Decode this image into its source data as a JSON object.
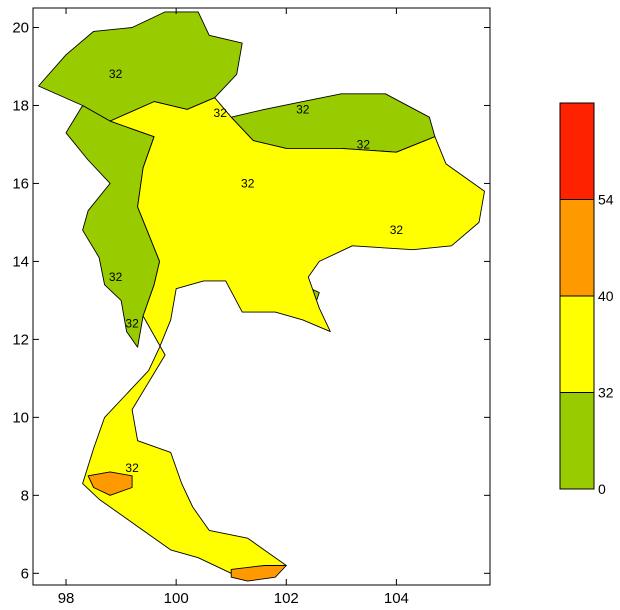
{
  "chart_data": {
    "type": "heatmap",
    "title": "",
    "xlabel": "",
    "ylabel": "",
    "xlim": [
      97.4,
      105.7
    ],
    "ylim": [
      5.7,
      20.5
    ],
    "x_ticks": [
      {
        "value": 98,
        "label": "98"
      },
      {
        "value": 100,
        "label": "100"
      },
      {
        "value": 102,
        "label": "102"
      },
      {
        "value": 104,
        "label": "104"
      }
    ],
    "y_ticks": [
      {
        "value": 6,
        "label": "6"
      },
      {
        "value": 8,
        "label": "8"
      },
      {
        "value": 10,
        "label": "10"
      },
      {
        "value": 12,
        "label": "12"
      },
      {
        "value": 14,
        "label": "14"
      },
      {
        "value": 16,
        "label": "16"
      },
      {
        "value": 18,
        "label": "18"
      },
      {
        "value": 20,
        "label": "20"
      }
    ],
    "color_classes": [
      {
        "from": 0,
        "to": 32,
        "color": "#99cc00"
      },
      {
        "from": 32,
        "to": 40,
        "color": "#ffff00"
      },
      {
        "from": 40,
        "to": 54,
        "color": "#ff9900"
      },
      {
        "from": 54,
        "to": 999,
        "color": "#ff2200"
      }
    ],
    "colorbar_labels": [
      "0",
      "32",
      "40",
      "54"
    ],
    "contour_labels": [
      {
        "text": "32",
        "lon": 98.9,
        "lat": 18.7
      },
      {
        "text": "32",
        "lon": 100.8,
        "lat": 17.7
      },
      {
        "text": "32",
        "lon": 102.3,
        "lat": 17.8
      },
      {
        "text": "32",
        "lon": 103.4,
        "lat": 16.9
      },
      {
        "text": "32",
        "lon": 101.3,
        "lat": 15.9
      },
      {
        "text": "32",
        "lon": 104.0,
        "lat": 14.7
      },
      {
        "text": "32",
        "lon": 98.9,
        "lat": 13.5
      },
      {
        "text": "32",
        "lon": 99.2,
        "lat": 12.3
      },
      {
        "text": "32",
        "lon": 99.2,
        "lat": 8.6
      }
    ],
    "regions": [
      {
        "name": "far-north",
        "class": 0,
        "points": [
          [
            97.5,
            18.5
          ],
          [
            98.0,
            19.3
          ],
          [
            98.5,
            19.9
          ],
          [
            99.2,
            20.0
          ],
          [
            99.8,
            20.4
          ],
          [
            100.4,
            20.4
          ],
          [
            100.6,
            19.8
          ],
          [
            101.2,
            19.6
          ],
          [
            101.1,
            18.8
          ],
          [
            100.7,
            18.2
          ],
          [
            100.2,
            17.9
          ],
          [
            99.6,
            18.1
          ],
          [
            98.8,
            17.6
          ],
          [
            98.3,
            18.0
          ]
        ]
      },
      {
        "name": "west-border",
        "class": 0,
        "points": [
          [
            98.3,
            18.0
          ],
          [
            98.8,
            17.6
          ],
          [
            99.6,
            17.2
          ],
          [
            99.4,
            16.4
          ],
          [
            99.3,
            15.4
          ],
          [
            99.5,
            14.7
          ],
          [
            99.7,
            14.0
          ],
          [
            99.6,
            13.4
          ],
          [
            99.4,
            12.6
          ],
          [
            99.3,
            11.8
          ],
          [
            99.1,
            12.2
          ],
          [
            99.0,
            13.0
          ],
          [
            98.7,
            13.4
          ],
          [
            98.6,
            14.1
          ],
          [
            98.3,
            14.8
          ],
          [
            98.4,
            15.3
          ],
          [
            98.8,
            16.0
          ],
          [
            98.4,
            16.6
          ],
          [
            98.0,
            17.3
          ]
        ]
      },
      {
        "name": "northeast-upper",
        "class": 0,
        "points": [
          [
            101.0,
            17.7
          ],
          [
            101.6,
            17.9
          ],
          [
            102.3,
            18.1
          ],
          [
            103.0,
            18.3
          ],
          [
            103.8,
            18.3
          ],
          [
            104.6,
            17.7
          ],
          [
            104.7,
            17.2
          ],
          [
            104.0,
            16.8
          ],
          [
            103.0,
            16.9
          ],
          [
            102.0,
            16.9
          ],
          [
            101.4,
            17.1
          ]
        ]
      },
      {
        "name": "central-west",
        "class": 0,
        "points": [
          [
            101.2,
            16.3
          ],
          [
            102.0,
            16.4
          ],
          [
            102.6,
            16.1
          ],
          [
            102.9,
            15.5
          ],
          [
            102.8,
            14.8
          ],
          [
            102.2,
            14.4
          ],
          [
            101.4,
            14.6
          ],
          [
            101.0,
            15.2
          ],
          [
            100.9,
            15.8
          ]
        ]
      },
      {
        "name": "korat-strip",
        "class": 0,
        "points": [
          [
            103.3,
            14.6
          ],
          [
            104.1,
            14.7
          ],
          [
            104.9,
            14.8
          ],
          [
            104.9,
            14.6
          ],
          [
            104.0,
            14.4
          ],
          [
            103.3,
            14.5
          ]
        ]
      },
      {
        "name": "chanthaburi",
        "class": 0,
        "points": [
          [
            102.3,
            13.4
          ],
          [
            102.6,
            13.2
          ],
          [
            102.5,
            12.8
          ],
          [
            102.3,
            12.9
          ],
          [
            102.1,
            13.1
          ]
        ]
      },
      {
        "name": "central-plain",
        "class": 1,
        "points": [
          [
            99.6,
            18.1
          ],
          [
            100.2,
            17.9
          ],
          [
            100.7,
            18.2
          ],
          [
            101.0,
            17.7
          ],
          [
            101.4,
            17.1
          ],
          [
            102.0,
            16.9
          ],
          [
            103.0,
            16.9
          ],
          [
            104.0,
            16.8
          ],
          [
            104.7,
            17.2
          ],
          [
            104.9,
            16.5
          ],
          [
            105.6,
            15.8
          ],
          [
            105.5,
            15.0
          ],
          [
            105.0,
            14.4
          ],
          [
            104.3,
            14.3
          ],
          [
            103.2,
            14.4
          ],
          [
            102.6,
            14.0
          ],
          [
            102.4,
            13.6
          ],
          [
            102.6,
            12.8
          ],
          [
            102.8,
            12.2
          ],
          [
            102.3,
            12.5
          ],
          [
            101.8,
            12.7
          ],
          [
            101.2,
            12.7
          ],
          [
            100.9,
            13.5
          ],
          [
            100.5,
            13.5
          ],
          [
            100.0,
            13.3
          ],
          [
            99.9,
            12.5
          ],
          [
            99.7,
            11.8
          ],
          [
            99.5,
            11.2
          ],
          [
            99.1,
            10.6
          ],
          [
            98.7,
            10.0
          ],
          [
            98.5,
            9.2
          ],
          [
            98.3,
            8.3
          ],
          [
            98.6,
            7.9
          ],
          [
            99.3,
            7.2
          ],
          [
            99.9,
            6.6
          ],
          [
            100.4,
            6.4
          ],
          [
            101.0,
            6.0
          ],
          [
            101.6,
            5.9
          ],
          [
            102.0,
            6.2
          ],
          [
            101.3,
            6.9
          ],
          [
            100.6,
            7.1
          ],
          [
            100.3,
            7.7
          ],
          [
            100.1,
            8.3
          ],
          [
            99.9,
            9.1
          ],
          [
            99.3,
            9.4
          ],
          [
            99.2,
            10.2
          ],
          [
            99.5,
            10.9
          ],
          [
            99.8,
            11.6
          ],
          [
            99.4,
            12.6
          ],
          [
            99.6,
            13.4
          ],
          [
            99.7,
            14.0
          ],
          [
            99.5,
            14.7
          ],
          [
            99.3,
            15.4
          ],
          [
            99.4,
            16.4
          ],
          [
            99.6,
            17.2
          ],
          [
            98.8,
            17.6
          ]
        ]
      },
      {
        "name": "phang-nga-hot",
        "class": 2,
        "points": [
          [
            98.4,
            8.5
          ],
          [
            98.8,
            8.6
          ],
          [
            99.2,
            8.5
          ],
          [
            99.2,
            8.2
          ],
          [
            98.8,
            8.0
          ],
          [
            98.5,
            8.2
          ]
        ]
      },
      {
        "name": "narathiwat-hot",
        "class": 2,
        "points": [
          [
            101.0,
            6.1
          ],
          [
            101.6,
            6.2
          ],
          [
            102.0,
            6.2
          ],
          [
            101.8,
            5.9
          ],
          [
            101.3,
            5.8
          ],
          [
            101.0,
            5.9
          ]
        ]
      }
    ]
  }
}
